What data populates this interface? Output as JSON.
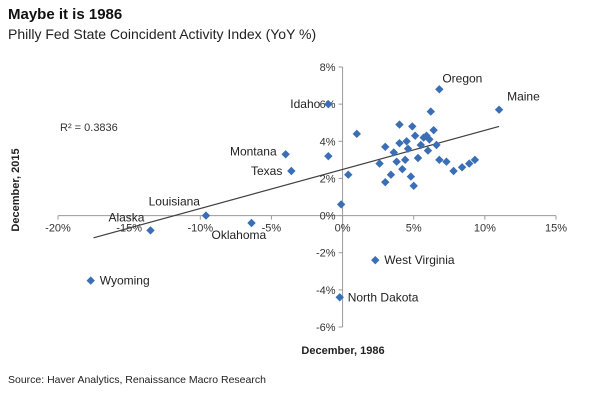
{
  "header": {
    "title": "Maybe it is 1986",
    "subtitle": "Philly Fed State Coincident Activity Index (YoY %)"
  },
  "footer": {
    "source": "Source:  Haver Analytics, Renaissance Macro Research"
  },
  "chart_data": {
    "type": "scatter",
    "title": "Maybe it is 1986",
    "subtitle": "Philly Fed State Coincident Activity Index (YoY %)",
    "xlabel": "December, 1986",
    "ylabel": "December, 2015",
    "xlim": [
      -20,
      15
    ],
    "ylim": [
      -6,
      8
    ],
    "x_ticks": [
      -20,
      -15,
      -10,
      -5,
      0,
      5,
      10,
      15
    ],
    "x_tick_labels": [
      "-20%",
      "-15%",
      "-10%",
      "-5%",
      "0%",
      "5%",
      "10%",
      "15%"
    ],
    "y_ticks": [
      -6,
      -4,
      -2,
      0,
      2,
      4,
      6,
      8
    ],
    "y_tick_labels": [
      "-6%",
      "-4%",
      "-2%",
      "0%",
      "2%",
      "4%",
      "6%",
      "8%"
    ],
    "grid": false,
    "marker_color": "#3a6fb5",
    "trendline": {
      "x": [
        -17.5,
        11
      ],
      "y": [
        -1.2,
        4.8
      ],
      "color": "#404040",
      "r2_label": "R² = 0.3836"
    },
    "labeled_points": [
      {
        "name": "Oregon",
        "x": 6.8,
        "y": 6.8
      },
      {
        "name": "Maine",
        "x": 11.0,
        "y": 5.7
      },
      {
        "name": "Idaho",
        "x": -1.0,
        "y": 6.0
      },
      {
        "name": "Montana",
        "x": -4.0,
        "y": 3.3
      },
      {
        "name": "Texas",
        "x": -3.6,
        "y": 2.4
      },
      {
        "name": "Louisiana",
        "x": -9.6,
        "y": 0.0
      },
      {
        "name": "Alaska",
        "x": -13.5,
        "y": -0.8
      },
      {
        "name": "Oklahoma",
        "x": -6.4,
        "y": -0.4
      },
      {
        "name": "Wyoming",
        "x": -17.7,
        "y": -3.5
      },
      {
        "name": "West Virginia",
        "x": 2.3,
        "y": -2.4
      },
      {
        "name": "North Dakota",
        "x": -0.2,
        "y": -4.4
      }
    ],
    "points": [
      {
        "x": -1.0,
        "y": 3.2
      },
      {
        "x": -0.1,
        "y": 0.6
      },
      {
        "x": 0.4,
        "y": 2.2
      },
      {
        "x": 1.0,
        "y": 4.4
      },
      {
        "x": 2.6,
        "y": 2.8
      },
      {
        "x": 3.0,
        "y": 1.8
      },
      {
        "x": 3.0,
        "y": 3.7
      },
      {
        "x": 3.4,
        "y": 2.2
      },
      {
        "x": 3.6,
        "y": 3.4
      },
      {
        "x": 3.8,
        "y": 2.9
      },
      {
        "x": 4.0,
        "y": 3.9
      },
      {
        "x": 4.0,
        "y": 4.9
      },
      {
        "x": 4.2,
        "y": 2.5
      },
      {
        "x": 4.4,
        "y": 3.0
      },
      {
        "x": 4.6,
        "y": 3.6
      },
      {
        "x": 4.8,
        "y": 2.1
      },
      {
        "x": 4.9,
        "y": 4.8
      },
      {
        "x": 5.0,
        "y": 1.6
      },
      {
        "x": 5.1,
        "y": 4.3
      },
      {
        "x": 5.3,
        "y": 3.1
      },
      {
        "x": 5.5,
        "y": 3.8
      },
      {
        "x": 5.7,
        "y": 4.2
      },
      {
        "x": 6.0,
        "y": 3.5
      },
      {
        "x": 6.1,
        "y": 4.1
      },
      {
        "x": 6.2,
        "y": 5.6
      },
      {
        "x": 6.4,
        "y": 4.6
      },
      {
        "x": 6.6,
        "y": 3.8
      },
      {
        "x": 6.8,
        "y": 3.0
      },
      {
        "x": 7.3,
        "y": 2.9
      },
      {
        "x": 7.8,
        "y": 2.4
      },
      {
        "x": 8.4,
        "y": 2.6
      },
      {
        "x": 8.9,
        "y": 2.8
      },
      {
        "x": 9.3,
        "y": 3.0
      },
      {
        "x": 5.9,
        "y": 4.3
      },
      {
        "x": 4.5,
        "y": 4.0
      }
    ]
  }
}
